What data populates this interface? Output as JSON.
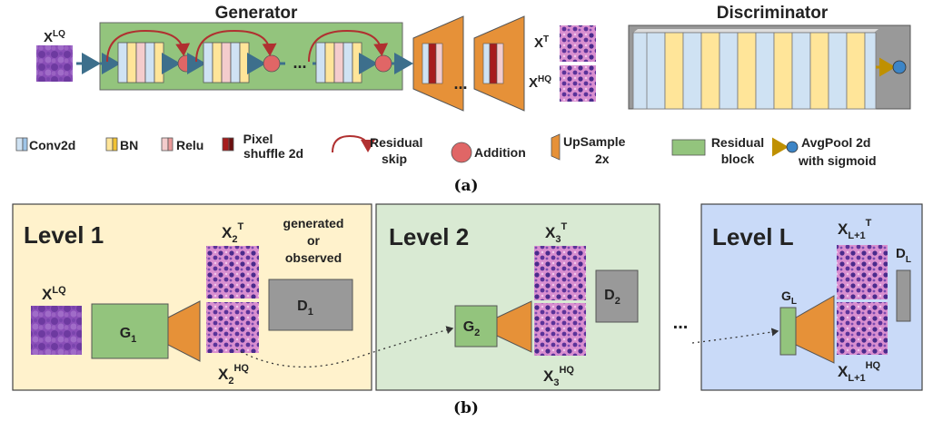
{
  "part_a": {
    "generator_title": "Generator",
    "discriminator_title": "Discriminator",
    "input_label": {
      "base": "X",
      "sup": "LQ"
    },
    "target_label": {
      "base": "X",
      "sup": "T"
    },
    "output_label": {
      "base": "X",
      "sup": "HQ"
    },
    "dots": "...",
    "caption": "(a)"
  },
  "legend": {
    "conv": "Conv2d",
    "bn": "BN",
    "relu": "Relu",
    "pixel_1": "Pixel",
    "pixel_2": "shuffle 2d",
    "residual_skip_1": "Residual",
    "residual_skip_2": "skip",
    "addition": "Addition",
    "upsample_1": "UpSample",
    "upsample_2": "2x",
    "residual_block_1": "Residual",
    "residual_block_2": "block",
    "avgpool_1": "AvgPool 2d",
    "avgpool_2": "with sigmoid"
  },
  "part_b": {
    "level1": {
      "title": "Level 1",
      "input": {
        "base": "X",
        "sup": "LQ"
      },
      "generator": {
        "base": "G",
        "sub": "1"
      },
      "target": {
        "base": "X",
        "sub": "2",
        "sup": "T"
      },
      "output": {
        "base": "X",
        "sub": "2",
        "sup": "HQ"
      },
      "disc": {
        "base": "D",
        "sub": "1"
      },
      "note_1": "generated",
      "note_2": "or",
      "note_3": "observed"
    },
    "level2": {
      "title": "Level 2",
      "generator": {
        "base": "G",
        "sub": "2"
      },
      "target": {
        "base": "X",
        "sub": "3",
        "sup": "T"
      },
      "output": {
        "base": "X",
        "sub": "3",
        "sup": "HQ"
      },
      "disc": {
        "base": "D",
        "sub": "2"
      }
    },
    "levelL": {
      "title": "Level L",
      "generator": {
        "base": "G",
        "sub": "L"
      },
      "target": {
        "base": "X",
        "sub": "L+1",
        "sup": "T"
      },
      "output": {
        "base": "X",
        "sub": "L+1",
        "sup": "HQ"
      },
      "disc": {
        "base": "D",
        "sub": "L"
      }
    },
    "dots": "...",
    "caption": "(b)"
  },
  "colors": {
    "conv": "#cfe2f3",
    "bn": "#ffe599",
    "relu": "#f4cccc",
    "pixel_shuffle": "#a61c1c",
    "addition": "#e06666",
    "upsample": "#e69138",
    "residual_block": "#93c47d",
    "discriminator_bg": "#999999",
    "avgpool_circle": "#3d85c6",
    "avgpool_arrow": "#bf9000",
    "level1_bg": "#fff2cc",
    "level2_bg": "#d9ead3",
    "levelL_bg": "#c9daf8",
    "skip_arrow": "#b03030"
  },
  "icons": [
    "conv-layer-icon",
    "bn-layer-icon",
    "relu-layer-icon",
    "pixel-shuffle-icon",
    "residual-skip-icon",
    "addition-icon",
    "upsample-icon",
    "residual-block-icon",
    "avgpool-icon"
  ]
}
